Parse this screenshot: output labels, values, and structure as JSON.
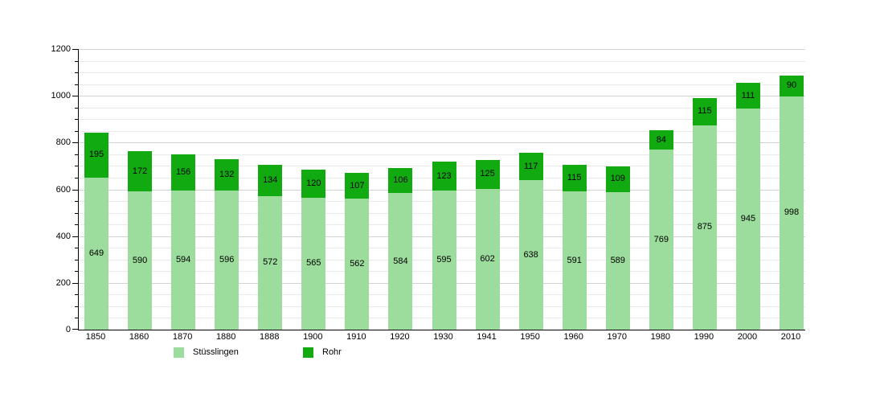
{
  "page": {
    "background_color": "#ffffff"
  },
  "chart_data": {
    "type": "bar",
    "stacked": true,
    "orientation": "vertical",
    "title": "",
    "xlabel": "",
    "ylabel": "",
    "categories": [
      "1850",
      "1860",
      "1870",
      "1880",
      "1888",
      "1900",
      "1910",
      "1920",
      "1930",
      "1941",
      "1950",
      "1960",
      "1970",
      "1980",
      "1990",
      "2000",
      "2010"
    ],
    "series": [
      {
        "name": "Stüsslingen",
        "color": "#9cdc9c",
        "values": [
          649,
          590,
          594,
          596,
          572,
          565,
          562,
          584,
          595,
          602,
          638,
          591,
          589,
          769,
          875,
          945,
          998
        ]
      },
      {
        "name": "Rohr",
        "color": "#11ab11",
        "values": [
          195,
          172,
          156,
          132,
          134,
          120,
          107,
          106,
          123,
          125,
          117,
          115,
          109,
          84,
          115,
          111,
          90
        ]
      }
    ],
    "totals": [
      844,
      762,
      750,
      728,
      706,
      685,
      669,
      690,
      718,
      727,
      755,
      706,
      698,
      853,
      990,
      1056,
      1088
    ],
    "ylim": [
      0,
      1200
    ],
    "yticks": [
      0,
      200,
      400,
      600,
      800,
      1000,
      1200
    ],
    "minor_grid_step": 50,
    "grid": true,
    "bar_value_labels": true,
    "legend_position": "bottom",
    "axis_color": "#000000",
    "gridline_minor_color": "#e9e9e9",
    "gridline_major_color": "#d2d2d2"
  }
}
